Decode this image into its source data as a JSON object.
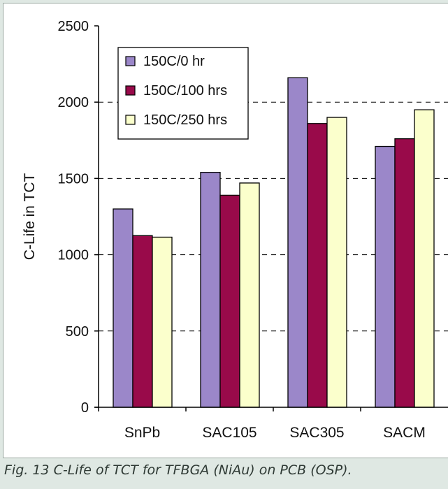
{
  "caption": "Fig. 13 C-Life of TCT for TFBGA (NiAu) on PCB (OSP).",
  "colors": {
    "page_background": "#dfe8e3",
    "panel_background": "#ffffff",
    "axis": "#000000",
    "gridline": "#000000",
    "series": [
      "#9b87c9",
      "#990a4a",
      "#fbffcc"
    ]
  },
  "chart_data": {
    "type": "bar",
    "title": "",
    "xlabel": "",
    "ylabel": "C-Life in TCT",
    "categories": [
      "SnPb",
      "SAC105",
      "SAC305",
      "SACM"
    ],
    "series": [
      {
        "name": "150C/0 hr",
        "values": [
          1300,
          1540,
          2160,
          1710
        ]
      },
      {
        "name": "150C/100 hrs",
        "values": [
          1125,
          1390,
          1860,
          1760
        ]
      },
      {
        "name": "150C/250 hrs",
        "values": [
          1115,
          1470,
          1900,
          1950
        ]
      }
    ],
    "ylim": [
      0,
      2500
    ],
    "yticks": [
      0,
      500,
      1000,
      1500,
      2000,
      2500
    ],
    "gridlines": "dashed",
    "legend_position": "top-left"
  }
}
